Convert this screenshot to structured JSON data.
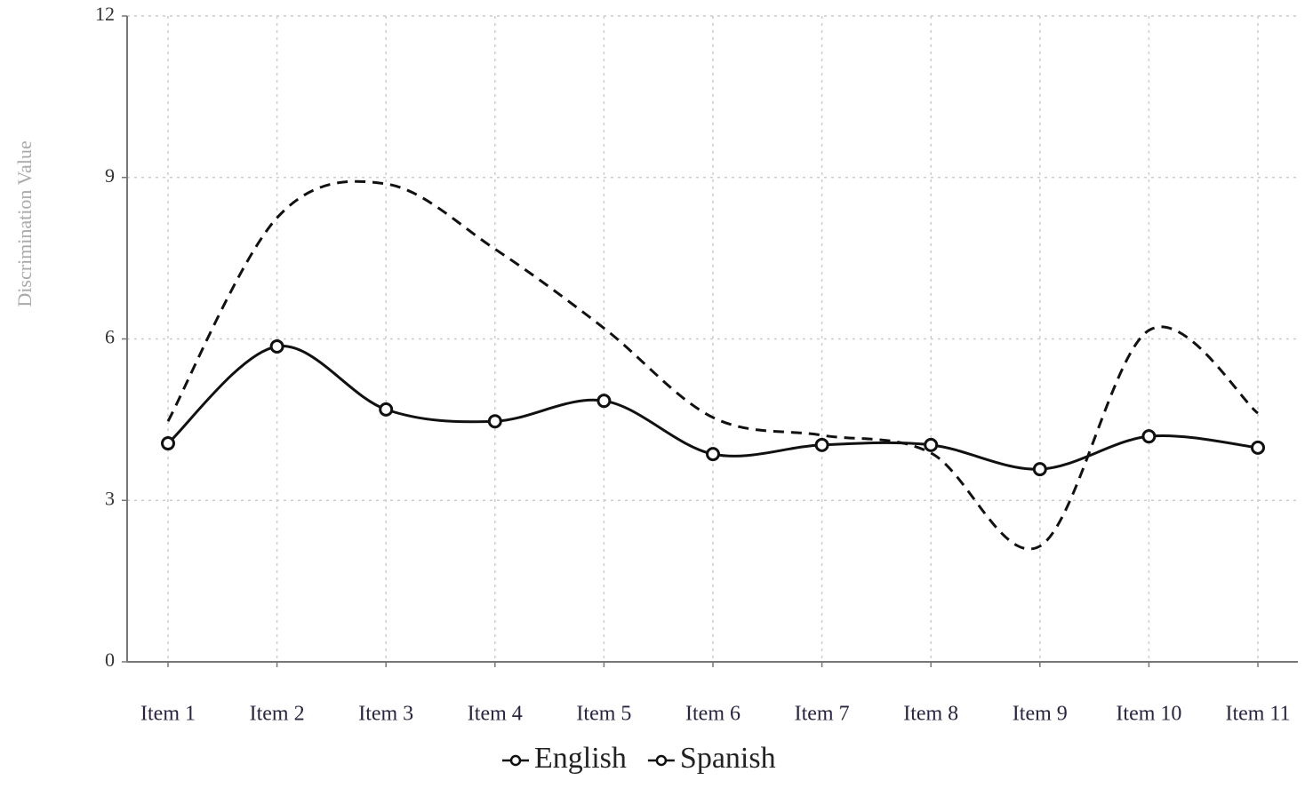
{
  "chart_data": {
    "type": "line",
    "y_label": "Discrimination Value",
    "categories": [
      "Item 1",
      "Item 2",
      "Item 3",
      "Item 4",
      "Item 5",
      "Item 6",
      "Item 7",
      "Item 8",
      "Item 9",
      "Item 10",
      "Item 11"
    ],
    "series": [
      {
        "name": "English",
        "color": "#111111",
        "dash": true,
        "markers": false,
        "values": [
          4.47,
          8.25,
          8.88,
          7.67,
          6.2,
          4.54,
          4.21,
          3.88,
          2.15,
          6.16,
          4.62
        ]
      },
      {
        "name": "Spanish",
        "color": "#111111",
        "dash": false,
        "markers": true,
        "values": [
          4.06,
          5.86,
          4.69,
          4.47,
          4.85,
          3.86,
          4.03,
          4.03,
          3.58,
          4.19,
          3.98
        ]
      }
    ],
    "ylim": [
      0,
      12
    ],
    "yticks": [
      0,
      3,
      6,
      9,
      12
    ],
    "grid": true,
    "smooth": true
  }
}
